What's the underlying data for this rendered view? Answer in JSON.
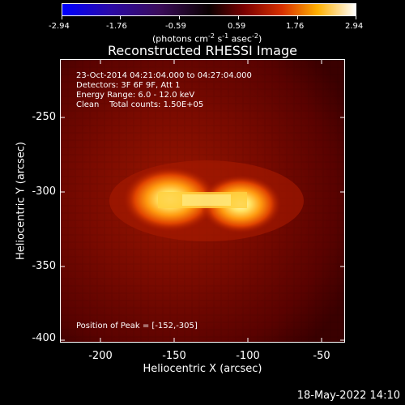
{
  "colorbar": {
    "ticks": [
      "-2.94",
      "-1.76",
      "-0.59",
      "0.59",
      "1.76",
      "2.94"
    ],
    "unit_prefix": "(photons cm",
    "unit_exp1": "-2",
    "unit_mid1": " s",
    "unit_exp2": "-1",
    "unit_mid2": " asec",
    "unit_exp3": "-2",
    "unit_suffix": ")"
  },
  "title": "Reconstructed RHESSI Image",
  "info": {
    "line1": "23-Oct-2014 04:21:04.000 to 04:27:04.000",
    "line2": "Detectors: 3F 6F 9F, Att 1",
    "line3": "Energy Range: 6.0 - 12.0 keV",
    "line4": "Clean    Total counts: 1.50E+05",
    "peak": "Position of Peak = [-152,-305]"
  },
  "axes": {
    "xlabel": "Heliocentric X (arcsec)",
    "ylabel": "Heliocentric Y (arcsec)",
    "xticks": [
      "-200",
      "-150",
      "-100",
      "-50"
    ],
    "yticks": [
      "-250",
      "-300",
      "-350",
      "-400"
    ]
  },
  "footer_date": "18-May-2022 14:10"
}
